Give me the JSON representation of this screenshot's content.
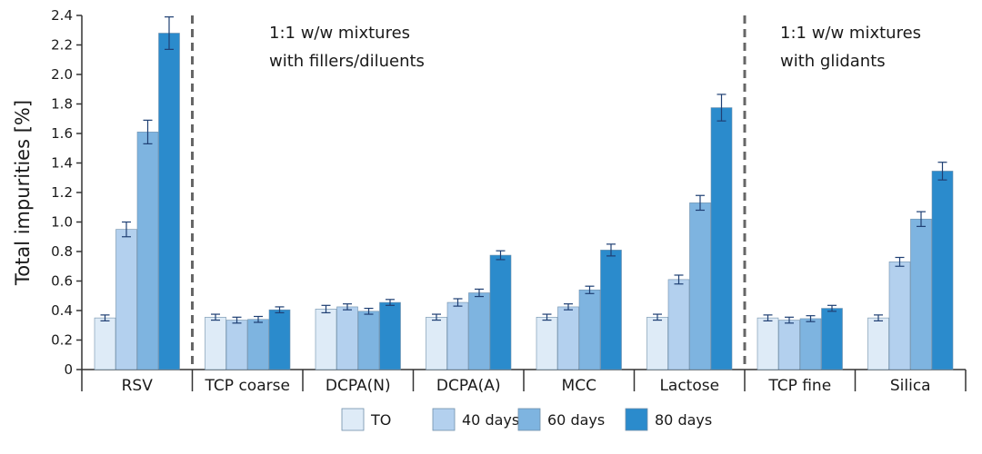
{
  "chart_data": {
    "type": "bar",
    "ylabel": "Total impurities [%]",
    "ylim": [
      0,
      2.4
    ],
    "yticks": [
      0,
      0.2,
      0.4,
      0.6,
      0.8,
      1.0,
      1.2,
      1.4,
      1.6,
      1.8,
      2.0,
      2.2,
      2.4
    ],
    "ytick_labels": [
      "0",
      "0.2",
      "0.4",
      "0.6",
      "0.8",
      "1.0",
      "1.2",
      "1.4",
      "1.6",
      "1.8",
      "2.0",
      "2.2",
      "2.4"
    ],
    "categories": [
      "RSV",
      "TCP coarse",
      "DCPA(N)",
      "DCPA(A)",
      "MCC",
      "Lactose",
      "TCP fine",
      "Silica"
    ],
    "series": [
      {
        "name": "TO",
        "color": "#deebf7",
        "values": [
          0.35,
          0.355,
          0.41,
          0.355,
          0.355,
          0.355,
          0.35,
          0.35
        ],
        "errors": [
          0.02,
          0.02,
          0.025,
          0.02,
          0.02,
          0.02,
          0.02,
          0.02
        ]
      },
      {
        "name": "40 days",
        "color": "#b3d0ee",
        "values": [
          0.95,
          0.335,
          0.425,
          0.455,
          0.425,
          0.61,
          0.335,
          0.73
        ],
        "errors": [
          0.05,
          0.02,
          0.02,
          0.025,
          0.02,
          0.03,
          0.02,
          0.03
        ]
      },
      {
        "name": "60 days",
        "color": "#7eb4e0",
        "values": [
          1.61,
          0.34,
          0.395,
          0.52,
          0.54,
          1.13,
          0.345,
          1.02
        ],
        "errors": [
          0.08,
          0.02,
          0.02,
          0.025,
          0.025,
          0.05,
          0.02,
          0.05
        ]
      },
      {
        "name": "80 days",
        "color": "#2b8bcc",
        "values": [
          2.28,
          0.405,
          0.455,
          0.775,
          0.81,
          1.775,
          0.415,
          1.345
        ],
        "errors": [
          0.11,
          0.02,
          0.02,
          0.03,
          0.04,
          0.09,
          0.02,
          0.06
        ]
      }
    ],
    "annotations": [
      {
        "line1": "1:1 w/w mixtures",
        "line2": "with fillers/diluents"
      },
      {
        "line1": "1:1 w/w mixtures",
        "line2": "with glidants"
      }
    ],
    "separators_after_category": [
      0,
      5
    ],
    "legend_position": "bottom",
    "grid": false
  }
}
